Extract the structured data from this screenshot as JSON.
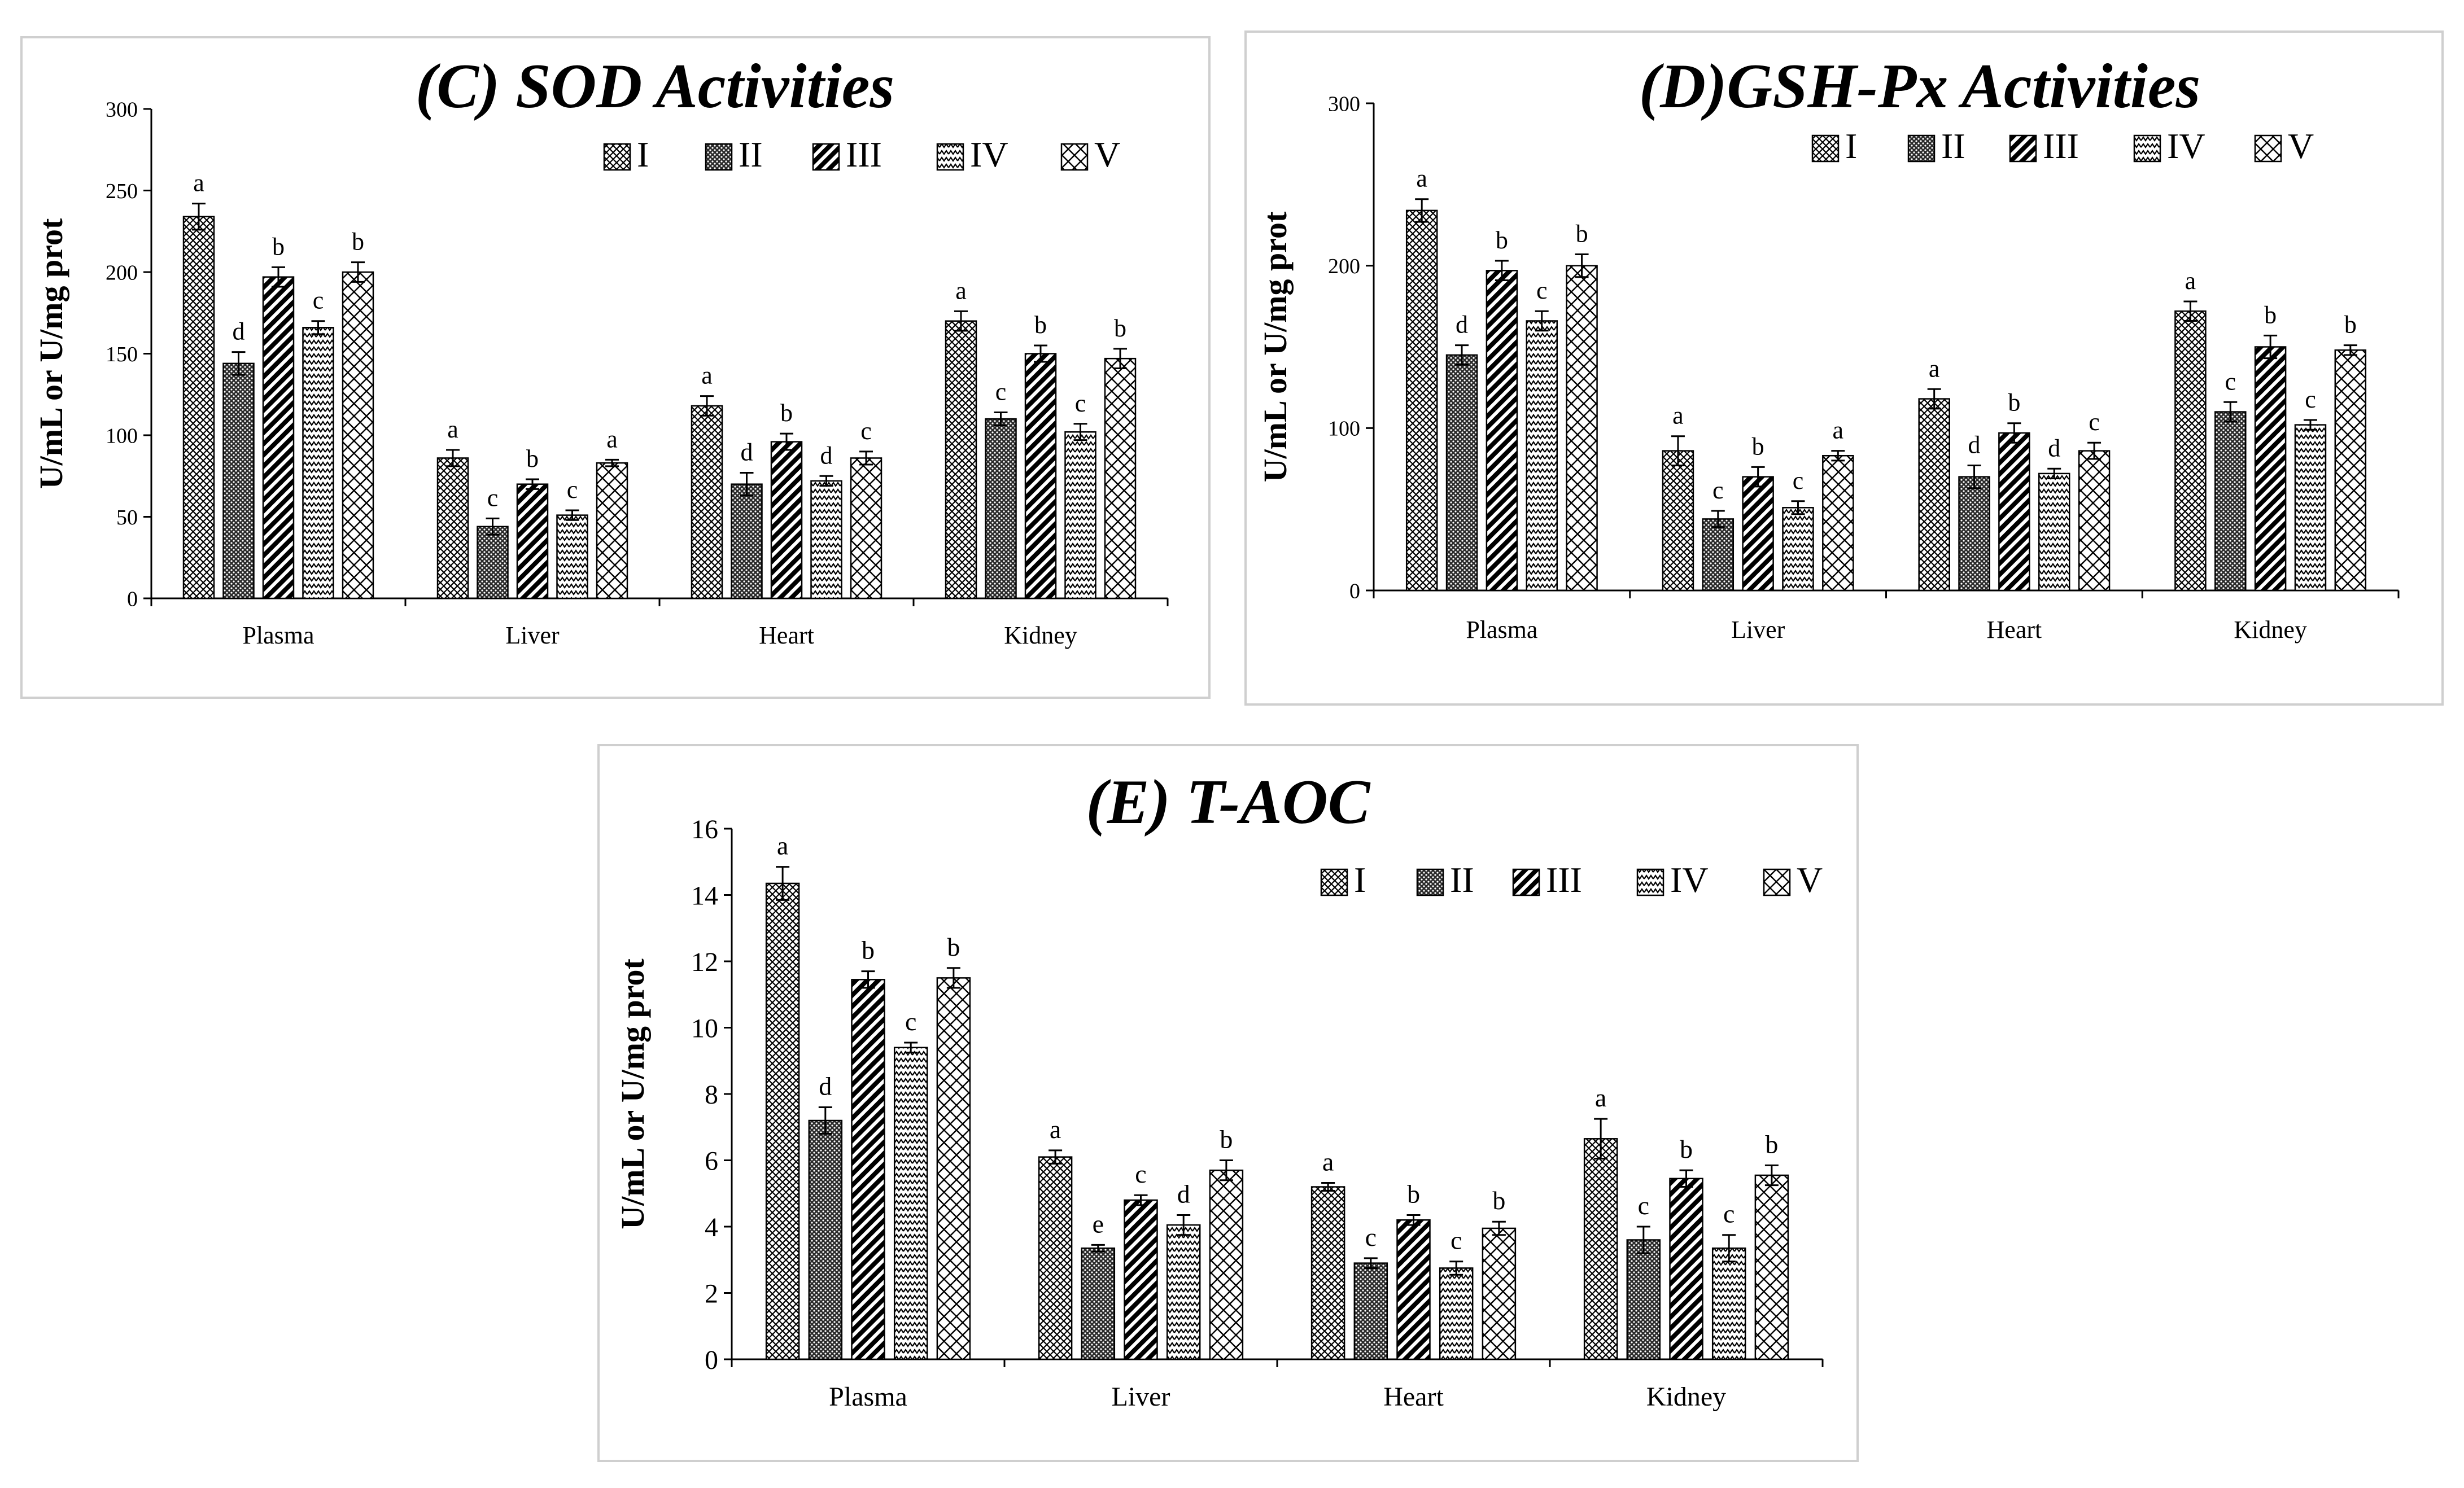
{
  "colors": {
    "axis": "#000000",
    "bar_fill": "#ffffff",
    "ink": "#000000"
  },
  "chart_data": [
    {
      "id": "C",
      "type": "bar",
      "title": "(C) SOD Activities",
      "ylabel": "U/mL or U/mg prot",
      "xlabel": "",
      "ylim": [
        0,
        300
      ],
      "yticks": [
        0,
        50,
        100,
        150,
        200,
        250,
        300
      ],
      "categories": [
        "Plasma",
        "Liver",
        "Heart",
        "Kidney"
      ],
      "legend_position": "top-right",
      "series": [
        {
          "name": "I",
          "pattern": "grid",
          "values": [
            234,
            86,
            118,
            170
          ],
          "errors": [
            8,
            5,
            6,
            6
          ],
          "letters": [
            "a",
            "a",
            "a",
            "a"
          ]
        },
        {
          "name": "II",
          "pattern": "dots",
          "values": [
            144,
            44,
            70,
            110
          ],
          "errors": [
            7,
            5,
            7,
            4
          ],
          "letters": [
            "d",
            "c",
            "d",
            "c"
          ]
        },
        {
          "name": "III",
          "pattern": "diag",
          "values": [
            197,
            70,
            96,
            150
          ],
          "errors": [
            6,
            3,
            5,
            5
          ],
          "letters": [
            "b",
            "b",
            "b",
            "b"
          ]
        },
        {
          "name": "IV",
          "pattern": "zigzag",
          "values": [
            166,
            51,
            72,
            102
          ],
          "errors": [
            4,
            3,
            3,
            5
          ],
          "letters": [
            "c",
            "c",
            "d",
            "c"
          ]
        },
        {
          "name": "V",
          "pattern": "lattice",
          "values": [
            200,
            83,
            86,
            147
          ],
          "errors": [
            6,
            2,
            4,
            6
          ],
          "letters": [
            "b",
            "a",
            "c",
            "b"
          ]
        }
      ]
    },
    {
      "id": "D",
      "type": "bar",
      "title": "(D)GSH-Px Activities",
      "ylabel": "U/mL or U/mg prot",
      "xlabel": "",
      "ylim": [
        0,
        300
      ],
      "yticks": [
        0,
        100,
        200,
        300
      ],
      "categories": [
        "Plasma",
        "Liver",
        "Heart",
        "Kidney"
      ],
      "legend_position": "top-right",
      "series": [
        {
          "name": "I",
          "pattern": "grid",
          "values": [
            234,
            86,
            118,
            172
          ],
          "errors": [
            7,
            9,
            6,
            6
          ],
          "letters": [
            "a",
            "a",
            "a",
            "a"
          ]
        },
        {
          "name": "II",
          "pattern": "dots",
          "values": [
            145,
            44,
            70,
            110
          ],
          "errors": [
            6,
            5,
            7,
            6
          ],
          "letters": [
            "d",
            "c",
            "d",
            "c"
          ]
        },
        {
          "name": "III",
          "pattern": "diag",
          "values": [
            197,
            70,
            97,
            150
          ],
          "errors": [
            6,
            6,
            6,
            7
          ],
          "letters": [
            "b",
            "b",
            "b",
            "b"
          ]
        },
        {
          "name": "IV",
          "pattern": "zigzag",
          "values": [
            166,
            51,
            72,
            102
          ],
          "errors": [
            6,
            4,
            3,
            3
          ],
          "letters": [
            "c",
            "c",
            "d",
            "c"
          ]
        },
        {
          "name": "V",
          "pattern": "lattice",
          "values": [
            200,
            83,
            86,
            148
          ],
          "errors": [
            7,
            3,
            5,
            3
          ],
          "letters": [
            "b",
            "a",
            "c",
            "b"
          ]
        }
      ]
    },
    {
      "id": "E",
      "type": "bar",
      "title": "(E) T-AOC",
      "ylabel": "U/mL or U/mg prot",
      "xlabel": "",
      "ylim": [
        0,
        16
      ],
      "yticks": [
        0,
        2,
        4,
        6,
        8,
        10,
        12,
        14,
        16
      ],
      "categories": [
        "Plasma",
        "Liver",
        "Heart",
        "Kidney"
      ],
      "legend_position": "top-right",
      "series": [
        {
          "name": "I",
          "pattern": "grid",
          "values": [
            14.35,
            6.1,
            5.2,
            6.65
          ],
          "errors": [
            0.5,
            0.2,
            0.12,
            0.6
          ],
          "letters": [
            "a",
            "a",
            "a",
            "a"
          ]
        },
        {
          "name": "II",
          "pattern": "dots",
          "values": [
            7.2,
            3.35,
            2.9,
            3.6
          ],
          "errors": [
            0.4,
            0.1,
            0.15,
            0.4
          ],
          "letters": [
            "d",
            "e",
            "c",
            "c"
          ]
        },
        {
          "name": "III",
          "pattern": "diag",
          "values": [
            11.45,
            4.8,
            4.2,
            5.45
          ],
          "errors": [
            0.25,
            0.15,
            0.15,
            0.25
          ],
          "letters": [
            "b",
            "c",
            "b",
            "b"
          ]
        },
        {
          "name": "IV",
          "pattern": "zigzag",
          "values": [
            9.4,
            4.05,
            2.75,
            3.35
          ],
          "errors": [
            0.15,
            0.3,
            0.2,
            0.4
          ],
          "letters": [
            "c",
            "d",
            "c",
            "c"
          ]
        },
        {
          "name": "V",
          "pattern": "lattice",
          "values": [
            11.5,
            5.7,
            3.95,
            5.55
          ],
          "errors": [
            0.3,
            0.3,
            0.2,
            0.3
          ],
          "letters": [
            "b",
            "b",
            "b",
            "b"
          ]
        }
      ]
    }
  ]
}
